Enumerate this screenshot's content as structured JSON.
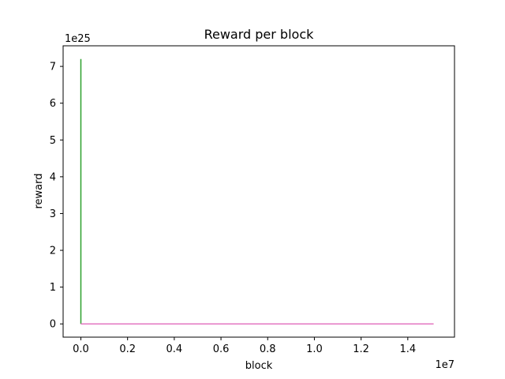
{
  "chart_data": {
    "type": "line",
    "title": "Reward per block",
    "xlabel": "block",
    "ylabel": "reward",
    "x_offset_label": "1e7",
    "y_offset_label": "1e25",
    "x_scale": 10000000,
    "y_scale": 1e+25,
    "xlim": [
      -0.076,
      1.6
    ],
    "ylim": [
      -0.36,
      7.56
    ],
    "x_ticks": [
      0.0,
      0.2,
      0.4,
      0.6,
      0.8,
      1.0,
      1.2,
      1.4
    ],
    "x_tick_labels": [
      "0.0",
      "0.2",
      "0.4",
      "0.6",
      "0.8",
      "1.0",
      "1.2",
      "1.4"
    ],
    "y_ticks": [
      0,
      1,
      2,
      3,
      4,
      5,
      6,
      7
    ],
    "y_tick_labels": [
      "0",
      "1",
      "2",
      "3",
      "4",
      "5",
      "6",
      "7"
    ],
    "grid": false,
    "legend": "none",
    "series": [
      {
        "color": "#2ca02c",
        "x": [
          0.0,
          0.0,
          0.0
        ],
        "y": [
          7.2,
          0.0,
          0.0
        ]
      },
      {
        "color": "#d62728",
        "x": [
          0.0,
          1.51
        ],
        "y": [
          0.0,
          0.0
        ]
      },
      {
        "color": "#e377c2",
        "x": [
          0.0,
          1.51
        ],
        "y": [
          0.0,
          0.0
        ]
      }
    ]
  }
}
